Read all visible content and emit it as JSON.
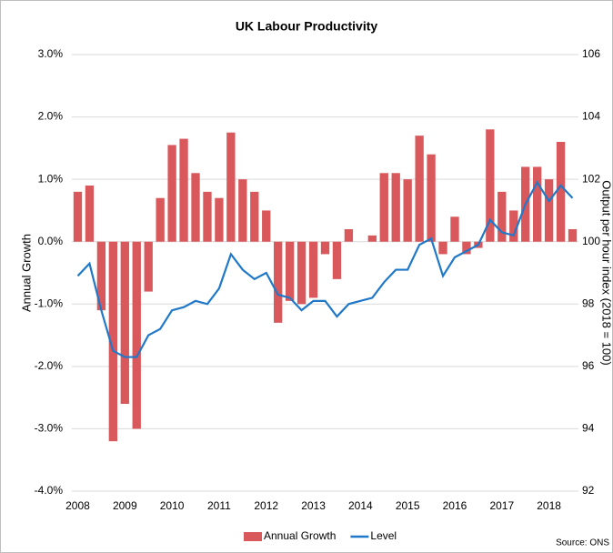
{
  "chart_data": {
    "type": "bar",
    "title": "UK Labour Productivity",
    "y_label": "Annual Growth",
    "y2_label": "Output per hour index (2018 = 100)",
    "source": "Source: ONS",
    "categories": [
      "2008",
      null,
      null,
      null,
      "2009",
      null,
      null,
      null,
      "2010",
      null,
      null,
      null,
      "2011",
      null,
      null,
      null,
      "2012",
      null,
      null,
      null,
      "2013",
      null,
      null,
      null,
      "2014",
      null,
      null,
      null,
      "2015",
      null,
      null,
      null,
      "2016",
      null,
      null,
      null,
      "2017",
      null,
      null,
      null,
      "2018",
      null,
      null
    ],
    "series": [
      {
        "name": "Annual Growth",
        "type": "bar",
        "color": "#d9585c",
        "axis": "y",
        "values": [
          0.8,
          0.9,
          -1.1,
          -3.2,
          -2.6,
          -3.0,
          -0.8,
          0.7,
          1.55,
          1.65,
          1.1,
          0.8,
          0.7,
          1.75,
          1.0,
          0.8,
          0.5,
          -1.3,
          -0.95,
          -1.0,
          -0.9,
          -0.2,
          -0.6,
          0.2,
          0,
          0.1,
          1.1,
          1.1,
          1.0,
          1.7,
          1.4,
          -0.2,
          0.4,
          -0.2,
          -0.1,
          1.8,
          0.8,
          0.5,
          1.2,
          1.2,
          1.0,
          1.6,
          0.2
        ]
      },
      {
        "name": "Level",
        "type": "line",
        "color": "#1f78c8",
        "axis": "y2",
        "values": [
          98.9,
          99.3,
          97.8,
          96.5,
          96.3,
          96.3,
          97.0,
          97.2,
          97.8,
          97.9,
          98.1,
          98.0,
          98.5,
          99.6,
          99.1,
          98.8,
          99.0,
          98.3,
          98.2,
          97.8,
          98.1,
          98.1,
          97.6,
          98.0,
          98.1,
          98.2,
          98.7,
          99.1,
          99.1,
          99.9,
          100.1,
          98.9,
          99.5,
          99.7,
          99.9,
          100.7,
          100.3,
          100.2,
          101.2,
          101.9,
          101.3,
          101.8,
          101.4
        ]
      }
    ],
    "ylim": [
      -4,
      3
    ],
    "yticks": [
      {
        "value": -4,
        "label": "-4.0%"
      },
      {
        "value": -3,
        "label": "-3.0%"
      },
      {
        "value": -2,
        "label": "-2.0%"
      },
      {
        "value": -1,
        "label": "-1.0%"
      },
      {
        "value": 0,
        "label": "0.0%"
      },
      {
        "value": 1,
        "label": "1.0%"
      },
      {
        "value": 2,
        "label": "2.0%"
      },
      {
        "value": 3,
        "label": "3.0%"
      }
    ],
    "y2lim": [
      92,
      106
    ],
    "y2ticks": [
      92,
      94,
      96,
      98,
      100,
      102,
      104,
      106
    ],
    "grid": true,
    "legend": "bottom"
  }
}
